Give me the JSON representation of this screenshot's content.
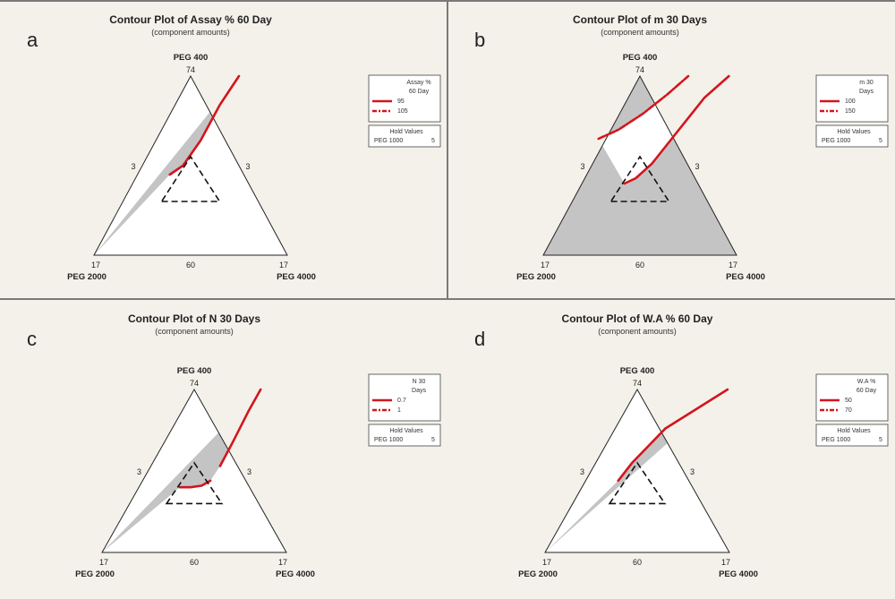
{
  "chart_data": [
    {
      "panel": "a",
      "type": "ternary-contour",
      "title": "Contour Plot of Assay % 60 Day",
      "subtitle": "(component amounts)",
      "vertices": {
        "top": "PEG 400",
        "left": "PEG 2000",
        "right": "PEG 4000"
      },
      "vertex_values": {
        "top": "74",
        "left": "17",
        "right": "17"
      },
      "side_values": {
        "left": "3",
        "right": "3",
        "bottom": "60"
      },
      "legend": {
        "title": [
          "Assay %",
          "60 Day"
        ],
        "levels": [
          "95",
          "105"
        ]
      },
      "hold": {
        "title": "Hold Values",
        "text": "PEG 1000",
        "value": "5"
      },
      "curves": [
        {
          "level": "95",
          "style": "solid",
          "points": [
            [
              0.26,
              0.55
            ],
            [
              0.42,
              0.5
            ],
            [
              0.58,
              0.36
            ],
            [
              0.68,
              0.16
            ],
            [
              0.75,
              0.0
            ]
          ]
        }
      ],
      "gray_region": "below",
      "constraint_triangle": {
        "top_y": 0.7,
        "apex_y": 0.45
      }
    },
    {
      "panel": "b",
      "type": "ternary-contour",
      "title": "Contour Plot of m 30 Days",
      "subtitle": "(component amounts)",
      "vertices": {
        "top": "PEG 400",
        "left": "PEG 2000",
        "right": "PEG 4000"
      },
      "vertex_values": {
        "top": "74",
        "left": "17",
        "right": "17"
      },
      "side_values": {
        "left": "3",
        "right": "3",
        "bottom": "60"
      },
      "legend": {
        "title": [
          "m 30",
          "Days"
        ],
        "levels": [
          "100",
          "150"
        ]
      },
      "hold": {
        "title": "Hold Values",
        "text": "PEG 1000",
        "value": "5"
      },
      "curves": [
        {
          "level": "100",
          "style": "solid",
          "points": [
            [
              0.3,
              0.6
            ],
            [
              0.45,
              0.57
            ],
            [
              0.62,
              0.49
            ],
            [
              0.76,
              0.34
            ],
            [
              0.88,
              0.12
            ],
            [
              0.96,
              0.0
            ]
          ]
        },
        {
          "level": "150",
          "style": "dashed",
          "points": [
            [
              0.17,
              0.35
            ],
            [
              0.34,
              0.3
            ],
            [
              0.52,
              0.21
            ],
            [
              0.66,
              0.1
            ],
            [
              0.75,
              0.0
            ]
          ]
        }
      ],
      "gray_region": "outside",
      "constraint_triangle": {
        "top_y": 0.7,
        "apex_y": 0.45
      }
    },
    {
      "panel": "c",
      "type": "ternary-contour",
      "title": "Contour Plot of N 30 Days",
      "subtitle": "(component amounts)",
      "vertices": {
        "top": "PEG 400",
        "left": "PEG 2000",
        "right": "PEG 4000"
      },
      "vertex_values": {
        "top": "74",
        "left": "17",
        "right": "17"
      },
      "side_values": {
        "left": "3",
        "right": "3",
        "bottom": "60"
      },
      "legend": {
        "title": [
          "N 30",
          "Days"
        ],
        "levels": [
          "0.7",
          "1"
        ]
      },
      "hold": {
        "title": "Hold Values",
        "text": "PEG 1000",
        "value": "5"
      },
      "curves": [
        {
          "level": "0.7",
          "style": "solid",
          "points": [
            [
              0.305,
              0.6
            ],
            [
              0.45,
              0.6
            ],
            [
              0.6,
              0.59
            ],
            [
              0.7,
              0.56
            ]
          ]
        },
        {
          "level": "1",
          "style": "solid",
          "points": [
            [
              0.765,
              0.47
            ],
            [
              0.81,
              0.32
            ],
            [
              0.84,
              0.13
            ],
            [
              0.86,
              0.0
            ]
          ]
        }
      ],
      "gray_region": "below",
      "constraint_triangle": {
        "top_y": 0.7,
        "apex_y": 0.45
      }
    },
    {
      "panel": "d",
      "type": "ternary-contour",
      "title": "Contour Plot of W.A % 60 Day",
      "subtitle": "(component amounts)",
      "vertices": {
        "top": "PEG 400",
        "left": "PEG 2000",
        "right": "PEG 4000"
      },
      "vertex_values": {
        "top": "74",
        "left": "17",
        "right": "17"
      },
      "side_values": {
        "left": "3",
        "right": "3",
        "bottom": "60"
      },
      "legend": {
        "title": [
          "W.A %",
          "60 Day"
        ],
        "levels": [
          "50",
          "70"
        ]
      },
      "hold": {
        "title": "Hold Values",
        "text": "PEG 1000",
        "value": "5"
      },
      "curves": [
        {
          "level": "50",
          "style": "solid",
          "points": [
            [
              0.265,
              0.56
            ],
            [
              0.45,
              0.45
            ],
            [
              0.7,
              0.24
            ],
            [
              0.99,
              0.0
            ]
          ]
        }
      ],
      "gray_region": "below",
      "constraint_triangle": {
        "top_y": 0.7,
        "apex_y": 0.45
      }
    }
  ],
  "colors": {
    "background": "#f3f1ea",
    "plot_gray": "#c4c4c4",
    "contour_red": "#d3151d",
    "divider": "#7a7a7a"
  }
}
